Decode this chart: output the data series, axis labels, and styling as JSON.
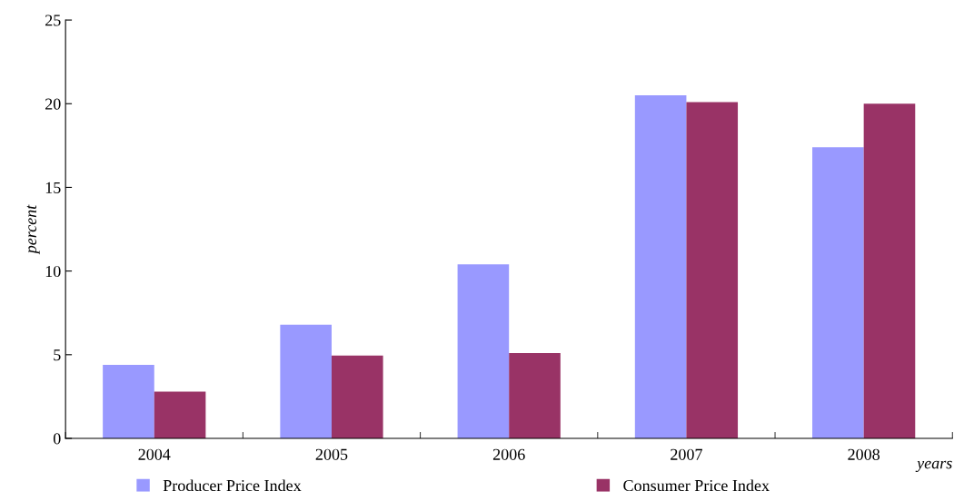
{
  "chart_data": {
    "type": "bar",
    "xlabel": "years",
    "ylabel": "percent",
    "categories": [
      "2004",
      "2005",
      "2006",
      "2007",
      "2008"
    ],
    "series": [
      {
        "name": "Producer Price Index",
        "color": "#9999ff",
        "values": [
          4.4,
          6.8,
          10.4,
          20.5,
          17.4
        ]
      },
      {
        "name": "Consumer Price Index",
        "color": "#993366",
        "values": [
          2.8,
          4.95,
          5.1,
          20.1,
          20.0
        ]
      }
    ],
    "ylim": [
      0,
      25
    ],
    "yticks": [
      0,
      5,
      10,
      15,
      20,
      25
    ],
    "grid": false,
    "legend": "bottom"
  }
}
